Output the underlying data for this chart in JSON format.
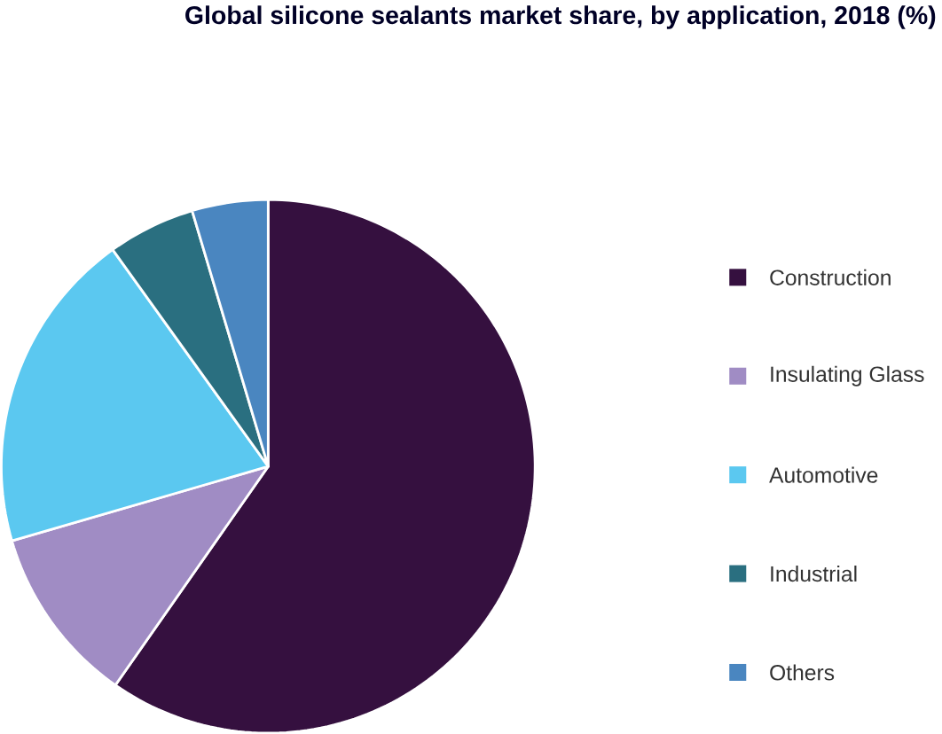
{
  "chart_data": {
    "type": "pie",
    "title": "Global silicone sealants market share, by application, 2018 (%)",
    "categories": [
      "Construction",
      "Insulating Glass",
      "Automotive",
      "Industrial",
      "Others"
    ],
    "values": [
      59.7,
      10.8,
      19.6,
      5.3,
      4.6
    ],
    "colors": [
      "#35103f",
      "#a08cc4",
      "#5bc8f0",
      "#2a6f80",
      "#4a86c0"
    ],
    "legend": "right"
  }
}
